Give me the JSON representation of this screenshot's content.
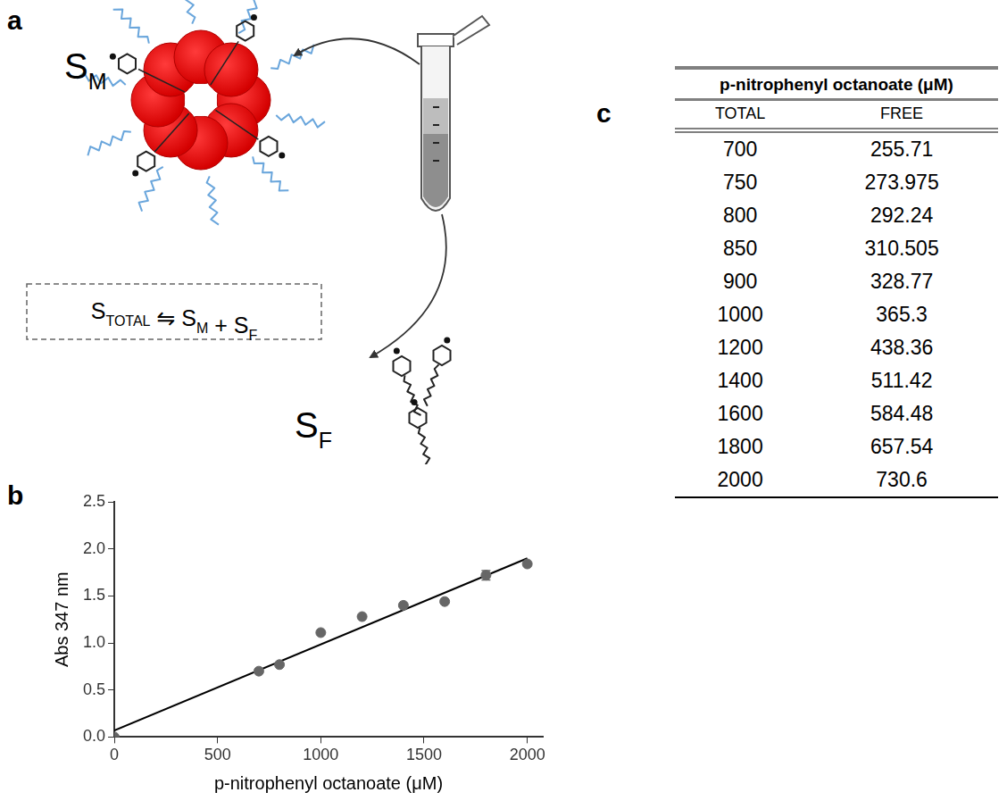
{
  "diagram": {
    "letter": "a",
    "micelle_label": {
      "text": "S",
      "sub": "M"
    },
    "equation": [
      {
        "text": "S",
        "sub": "TOTAL"
      },
      {
        "text": " ⇋ S",
        "sub": "M"
      },
      {
        "text": " + S",
        "sub": "F"
      }
    ],
    "free_label": {
      "text": "S",
      "sub": "F"
    }
  },
  "chart_data": {
    "letter": "b",
    "type": "scatter",
    "x_label": "p-nitrophenyl octanoate (μM)",
    "y_label": "Abs 347 nm",
    "xlim": [
      0,
      2075
    ],
    "xticks": [
      0,
      500,
      1000,
      1500,
      2000
    ],
    "ylim": [
      0,
      2.5
    ],
    "yticks": [
      {
        "value": 0,
        "label": "0.0"
      },
      0.5,
      {
        "value": 1,
        "label": "1.0"
      },
      1.5,
      {
        "value": 2,
        "label": "2.0"
      },
      2.5
    ],
    "grid": false,
    "series": [
      {
        "type": "scatter",
        "color": "#666666",
        "marker": "circle",
        "x": [
          0,
          700,
          800,
          1000,
          1200,
          1400,
          1600,
          1800,
          2000
        ],
        "values": [
          0,
          0.7,
          0.77,
          1.11,
          1.28,
          1.4,
          1.44,
          1.72,
          1.84
        ],
        "errors": [
          null,
          null,
          null,
          null,
          null,
          null,
          null,
          0.05,
          null
        ]
      },
      {
        "type": "line",
        "color": "#000000",
        "line_style": "solid",
        "x": [
          0,
          2000
        ],
        "values": [
          0.07,
          1.9
        ]
      }
    ]
  },
  "table": {
    "letter": "c",
    "title": "p-nitrophenyl octanoate (μM)",
    "columns": [
      "TOTAL",
      "FREE"
    ],
    "rows": [
      [
        "700",
        "255.71"
      ],
      [
        "750",
        "273.975"
      ],
      [
        "800",
        "292.24"
      ],
      [
        "850",
        "310.505"
      ],
      [
        "900",
        "328.77"
      ],
      [
        "1000",
        "365.3"
      ],
      [
        "1200",
        "438.36"
      ],
      [
        "1400",
        "511.42"
      ],
      [
        "1600",
        "584.48"
      ],
      [
        "1800",
        "657.54"
      ],
      [
        "2000",
        "730.6"
      ]
    ]
  }
}
